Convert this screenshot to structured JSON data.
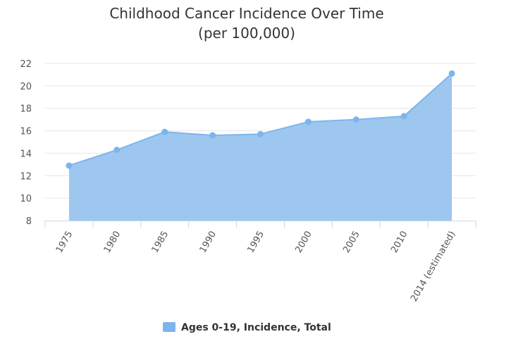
{
  "chart_data": {
    "type": "area",
    "title": "Childhood Cancer Incidence Over Time",
    "subtitle": "(per 100,000)",
    "categories": [
      "1975",
      "1980",
      "1985",
      "1990",
      "1995",
      "2000",
      "2005",
      "2010",
      "2014 (estimated)"
    ],
    "series": [
      {
        "name": "Ages 0-19, Incidence, Total",
        "values": [
          12.9,
          14.3,
          15.9,
          15.6,
          15.7,
          16.8,
          17.0,
          17.3,
          21.1
        ]
      }
    ],
    "ylim": [
      8,
      22
    ],
    "yticks": [
      "8",
      "10",
      "12",
      "14",
      "16",
      "18",
      "20",
      "22"
    ],
    "grid": true,
    "legend": "bottom-center",
    "colors": {
      "fill": "#9ec7f0",
      "line": "#7cb5ec",
      "marker": "#7cb5ec",
      "grid": "#e6e6e6",
      "axis": "#ccd6eb"
    }
  }
}
